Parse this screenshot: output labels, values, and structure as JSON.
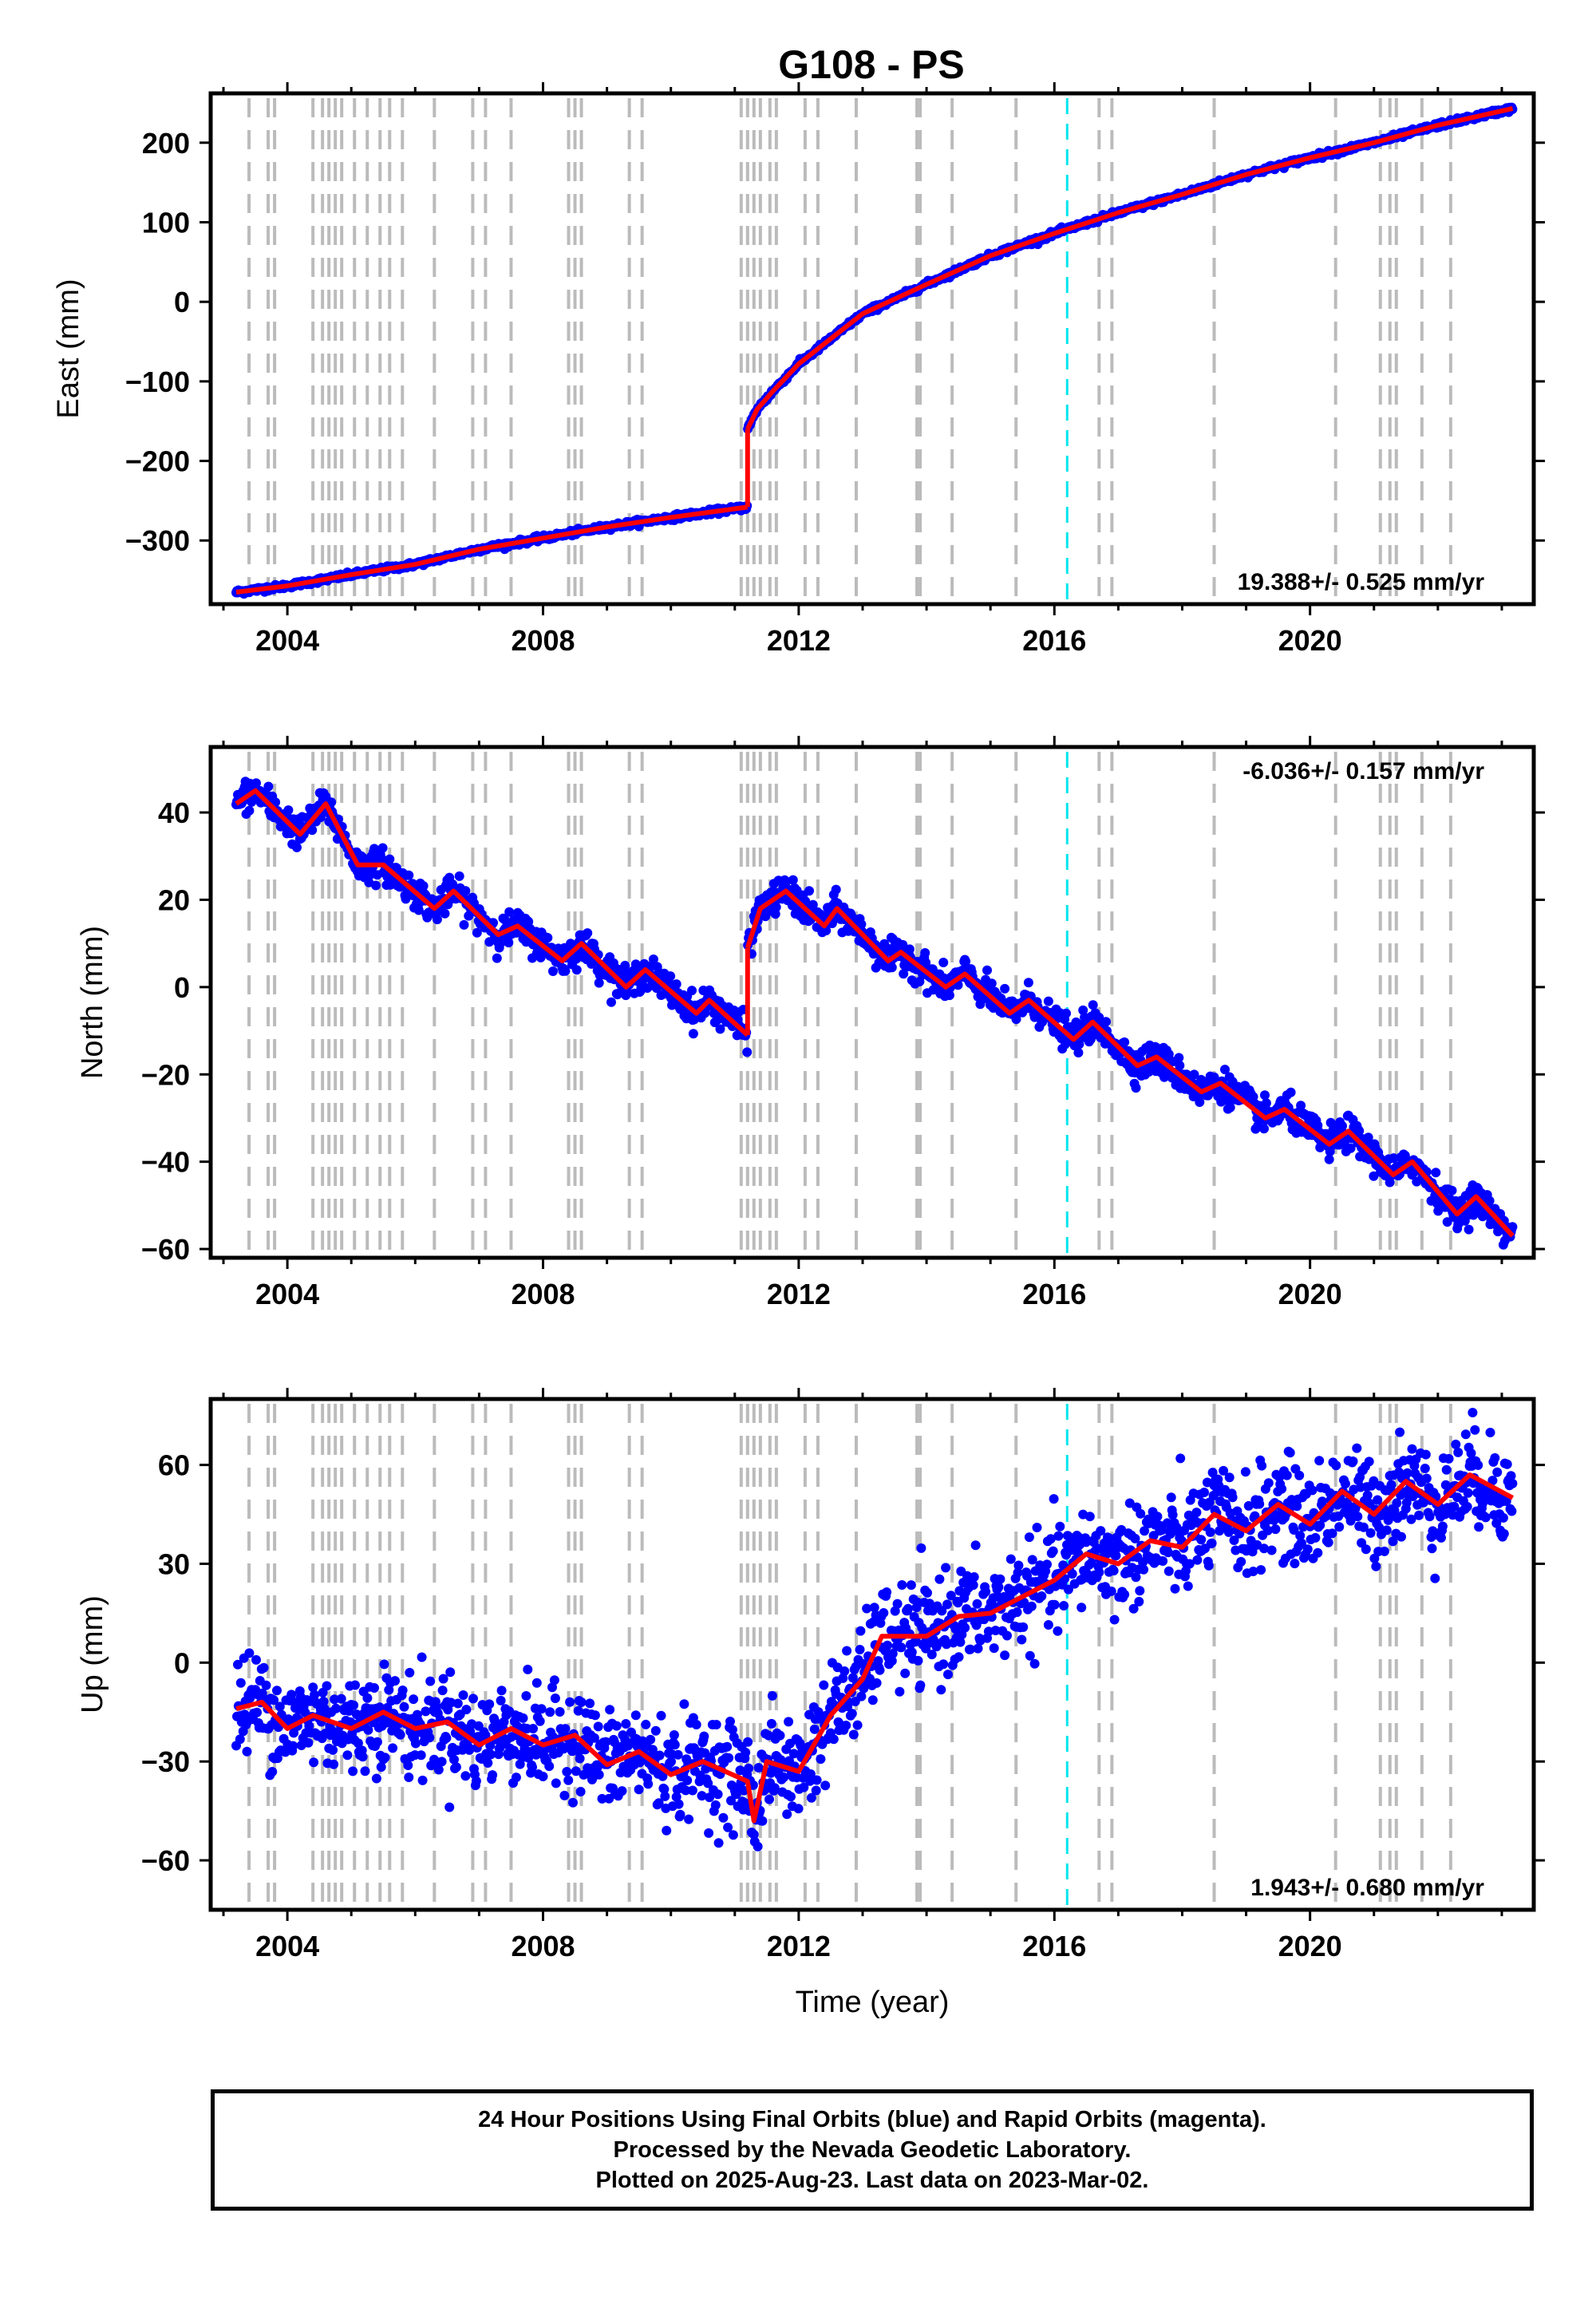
{
  "title": "G108 - PS",
  "colors": {
    "final_orbits": "#0000ff",
    "model": "#ff0000",
    "event_line": "#bbbbbb",
    "highlight_line": "#00e5ee"
  },
  "chart_data": [
    {
      "type": "scatter",
      "name": "east",
      "ylabel": "East (mm)",
      "rate_label": "19.388+/- 0.525 mm/yr",
      "rate_position": "bottom-right",
      "xlim": [
        2002.8,
        2023.5
      ],
      "ylim": [
        -380,
        262
      ],
      "xticks": [
        2004,
        2008,
        2012,
        2016,
        2020
      ],
      "xtick_labels": [
        "2004",
        "2008",
        "2012",
        "2016",
        "2020"
      ],
      "yticks": [
        -300,
        -200,
        -100,
        0,
        100,
        200
      ],
      "ytick_labels": [
        "−300",
        "−200",
        "−100",
        "0",
        "100",
        "200"
      ],
      "time_range": [
        2003.2,
        2023.17
      ],
      "model_segments": [
        [
          [
            2003.2,
            -365
          ],
          [
            2004.0,
            -357
          ],
          [
            2005.0,
            -343
          ],
          [
            2006.0,
            -330
          ],
          [
            2007.0,
            -311
          ],
          [
            2008.0,
            -297
          ],
          [
            2009.0,
            -283
          ],
          [
            2010.0,
            -271
          ],
          [
            2011.2,
            -258
          ]
        ],
        [
          [
            2011.2,
            -160
          ],
          [
            2011.35,
            -135
          ],
          [
            2011.6,
            -112
          ],
          [
            2012.0,
            -78
          ],
          [
            2013.0,
            -15
          ],
          [
            2014.0,
            22
          ],
          [
            2015.0,
            58
          ],
          [
            2016.0,
            86
          ],
          [
            2017.0,
            112
          ],
          [
            2018.0,
            135
          ],
          [
            2019.0,
            160
          ],
          [
            2020.0,
            181
          ],
          [
            2021.0,
            200
          ],
          [
            2022.0,
            222
          ],
          [
            2023.17,
            243
          ]
        ]
      ]
    },
    {
      "type": "scatter",
      "name": "north",
      "ylabel": "North (mm)",
      "rate_label": "-6.036+/- 0.157 mm/yr",
      "rate_position": "top-right",
      "xlim": [
        2002.8,
        2023.5
      ],
      "ylim": [
        -62,
        55
      ],
      "xticks": [
        2004,
        2008,
        2012,
        2016,
        2020
      ],
      "xtick_labels": [
        "2004",
        "2008",
        "2012",
        "2016",
        "2020"
      ],
      "yticks": [
        -60,
        -40,
        -20,
        0,
        20,
        40
      ],
      "ytick_labels": [
        "−60",
        "−40",
        "−20",
        "0",
        "20",
        "40"
      ],
      "time_range": [
        2003.2,
        2023.17
      ],
      "model_segments": [
        [
          [
            2003.2,
            42
          ],
          [
            2003.5,
            45
          ],
          [
            2004.2,
            35
          ],
          [
            2004.6,
            42
          ],
          [
            2005.1,
            28
          ],
          [
            2005.5,
            28
          ],
          [
            2006.3,
            18
          ],
          [
            2006.6,
            22
          ],
          [
            2007.3,
            12
          ],
          [
            2007.6,
            14
          ],
          [
            2008.3,
            6
          ],
          [
            2008.6,
            10
          ],
          [
            2009.3,
            0
          ],
          [
            2009.6,
            4
          ],
          [
            2010.4,
            -6
          ],
          [
            2010.6,
            -3
          ],
          [
            2011.2,
            -11
          ]
        ],
        [
          [
            2011.2,
            9
          ],
          [
            2011.4,
            18
          ],
          [
            2011.8,
            22
          ],
          [
            2012.4,
            14
          ],
          [
            2012.6,
            18
          ],
          [
            2013.4,
            6
          ],
          [
            2013.6,
            8
          ],
          [
            2014.3,
            0
          ],
          [
            2014.6,
            3
          ],
          [
            2015.3,
            -6
          ],
          [
            2015.6,
            -3
          ],
          [
            2016.3,
            -12
          ],
          [
            2016.6,
            -8
          ],
          [
            2017.3,
            -18
          ],
          [
            2017.6,
            -16
          ],
          [
            2018.3,
            -24
          ],
          [
            2018.6,
            -22
          ],
          [
            2019.3,
            -30
          ],
          [
            2019.6,
            -28
          ],
          [
            2020.3,
            -36
          ],
          [
            2020.6,
            -33
          ],
          [
            2021.3,
            -43
          ],
          [
            2021.6,
            -40
          ],
          [
            2022.3,
            -52
          ],
          [
            2022.6,
            -48
          ],
          [
            2023.17,
            -57
          ]
        ]
      ]
    },
    {
      "type": "scatter",
      "name": "up",
      "xlabel": "Time (year)",
      "ylabel": "Up (mm)",
      "rate_label": "1.943+/- 0.680 mm/yr",
      "rate_position": "bottom-right",
      "xlim": [
        2002.8,
        2023.5
      ],
      "ylim": [
        -75,
        80
      ],
      "xticks": [
        2004,
        2008,
        2012,
        2016,
        2020
      ],
      "xtick_labels": [
        "2004",
        "2008",
        "2012",
        "2016",
        "2020"
      ],
      "yticks": [
        -60,
        -30,
        0,
        30,
        60
      ],
      "ytick_labels": [
        "−60",
        "−30",
        "0",
        "30",
        "60"
      ],
      "time_range": [
        2003.2,
        2023.17
      ],
      "model_segments": [
        [
          [
            2003.2,
            -14
          ],
          [
            2003.6,
            -12
          ],
          [
            2004.0,
            -20
          ],
          [
            2004.4,
            -16
          ],
          [
            2005.0,
            -20
          ],
          [
            2005.5,
            -15
          ],
          [
            2006.0,
            -20
          ],
          [
            2006.5,
            -18
          ],
          [
            2007.0,
            -25
          ],
          [
            2007.5,
            -20
          ],
          [
            2008.0,
            -25
          ],
          [
            2008.5,
            -22
          ],
          [
            2009.0,
            -31
          ],
          [
            2009.5,
            -27
          ],
          [
            2010.0,
            -34
          ],
          [
            2010.5,
            -30
          ],
          [
            2011.2,
            -36
          ],
          [
            2011.3,
            -48
          ],
          [
            2011.5,
            -30
          ],
          [
            2012.0,
            -33
          ],
          [
            2012.5,
            -16
          ],
          [
            2013.0,
            -5
          ],
          [
            2013.3,
            8
          ],
          [
            2014.0,
            8
          ],
          [
            2014.5,
            14
          ],
          [
            2015.0,
            15
          ],
          [
            2015.5,
            20
          ],
          [
            2016.0,
            25
          ],
          [
            2016.5,
            33
          ],
          [
            2017.0,
            30
          ],
          [
            2017.5,
            37
          ],
          [
            2018.0,
            35
          ],
          [
            2018.5,
            45
          ],
          [
            2019.0,
            40
          ],
          [
            2019.5,
            48
          ],
          [
            2020.0,
            42
          ],
          [
            2020.5,
            52
          ],
          [
            2021.0,
            45
          ],
          [
            2021.5,
            55
          ],
          [
            2022.0,
            48
          ],
          [
            2022.5,
            57
          ],
          [
            2023.17,
            50
          ]
        ]
      ]
    }
  ],
  "event_lines": [
    2003.4,
    2003.7,
    2003.8,
    2004.4,
    2004.55,
    2004.65,
    2004.75,
    2004.85,
    2005.05,
    2005.25,
    2005.45,
    2005.6,
    2005.8,
    2006.3,
    2006.9,
    2007.1,
    2007.5,
    2008.4,
    2008.5,
    2008.6,
    2009.35,
    2009.55,
    2011.1,
    2011.2,
    2011.3,
    2011.4,
    2011.55,
    2011.65,
    2012.1,
    2012.3,
    2012.9,
    2013.85,
    2013.9,
    2014.4,
    2015.4,
    2016.7,
    2016.9,
    2018.5,
    2020.4,
    2021.1,
    2021.25,
    2021.35,
    2021.75,
    2022.2
  ],
  "highlight_lines": [
    2016.2
  ],
  "caption": [
    "24 Hour Positions Using Final Orbits (blue) and Rapid Orbits (magenta).",
    "Processed by the Nevada Geodetic Laboratory.",
    "Plotted on 2025-Aug-23. Last data on 2023-Mar-02."
  ]
}
